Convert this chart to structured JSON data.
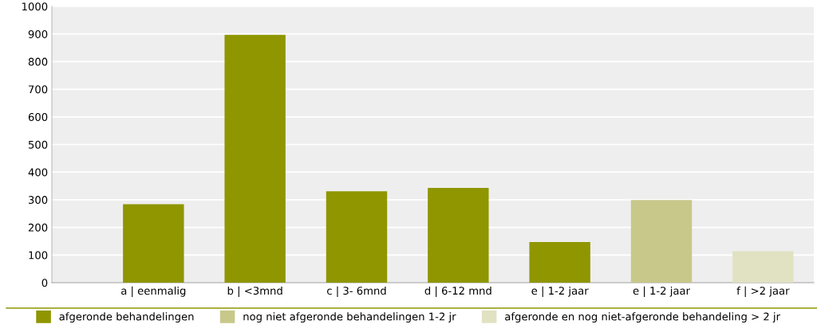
{
  "chart_data": {
    "type": "bar",
    "categories": [
      "a | eenmalig",
      "b | <3mnd",
      "c | 3- 6mnd",
      "d | 6-12 mnd",
      "e | 1-2 jaar",
      "e | 1-2 jaar",
      "f | >2 jaar"
    ],
    "series": [
      {
        "name": "afgeronde behandelingen",
        "color": "#8f9600",
        "values": [
          284,
          897,
          331,
          343,
          147,
          null,
          null
        ]
      },
      {
        "name": "nog niet afgeronde behandelingen 1-2 jr",
        "color": "#c8c88a",
        "values": [
          null,
          null,
          null,
          null,
          null,
          299,
          null
        ]
      },
      {
        "name": "afgeronde en nog niet-afgeronde behandeling > 2 jr",
        "color": "#e0e2c2",
        "values": [
          null,
          null,
          null,
          null,
          null,
          null,
          114
        ]
      }
    ],
    "ylim": [
      0,
      1000
    ],
    "yticks": [
      0,
      100,
      200,
      300,
      400,
      500,
      600,
      700,
      800,
      900,
      1000
    ],
    "grid": "y",
    "legend": "bottom"
  }
}
